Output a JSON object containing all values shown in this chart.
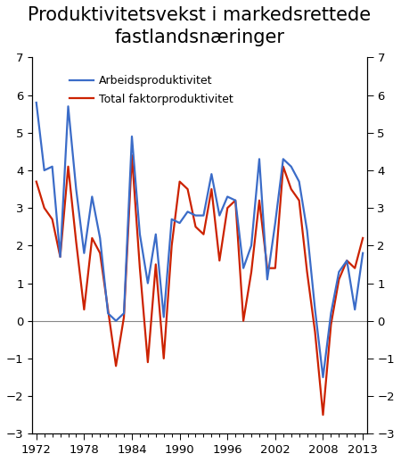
{
  "title": "Produktivitetsvekst i markedsrettede\nfastlandsnæringer",
  "title_fontsize": 15,
  "legend_entries": [
    "Arbeidsproduktivitet",
    "Total faktorproduktivitet"
  ],
  "blue_color": "#3B6CC8",
  "red_color": "#CC2200",
  "years": [
    1972,
    1973,
    1974,
    1975,
    1976,
    1977,
    1978,
    1979,
    1980,
    1981,
    1982,
    1983,
    1984,
    1985,
    1986,
    1987,
    1988,
    1989,
    1990,
    1991,
    1992,
    1993,
    1994,
    1995,
    1996,
    1997,
    1998,
    1999,
    2000,
    2001,
    2002,
    2003,
    2004,
    2005,
    2006,
    2007,
    2008,
    2009,
    2010,
    2011,
    2012,
    2013
  ],
  "arbeidsproduktivitet": [
    5.8,
    4.0,
    4.1,
    1.7,
    5.7,
    3.5,
    1.8,
    3.3,
    2.2,
    0.2,
    0.0,
    0.2,
    4.9,
    2.3,
    1.0,
    2.3,
    0.1,
    2.7,
    2.6,
    2.9,
    2.8,
    2.8,
    3.9,
    2.8,
    3.3,
    3.2,
    1.4,
    2.0,
    4.3,
    1.1,
    2.6,
    4.3,
    4.1,
    3.7,
    2.4,
    0.3,
    -1.5,
    0.2,
    1.3,
    1.6,
    0.3,
    1.8
  ],
  "faktorproduktivitet": [
    3.7,
    3.0,
    2.7,
    1.7,
    4.1,
    2.1,
    0.3,
    2.2,
    1.8,
    0.3,
    -1.2,
    0.1,
    4.4,
    1.4,
    -1.1,
    1.5,
    -1.0,
    2.0,
    3.7,
    3.5,
    2.5,
    2.3,
    3.5,
    1.6,
    3.0,
    3.2,
    0.0,
    1.3,
    3.2,
    1.4,
    1.4,
    4.1,
    3.5,
    3.2,
    1.3,
    -0.3,
    -2.5,
    -0.1,
    1.1,
    1.6,
    1.4,
    2.2
  ],
  "xlim": [
    1971.5,
    2013.5
  ],
  "ylim": [
    -3,
    7
  ],
  "yticks": [
    -3,
    -2,
    -1,
    0,
    1,
    2,
    3,
    4,
    5,
    6,
    7
  ],
  "xticks": [
    1972,
    1978,
    1984,
    1990,
    1996,
    2002,
    2008,
    2013
  ],
  "background_color": "#ffffff",
  "zero_line_color": "#888888",
  "spine_color": "#555555",
  "line_width": 1.6
}
